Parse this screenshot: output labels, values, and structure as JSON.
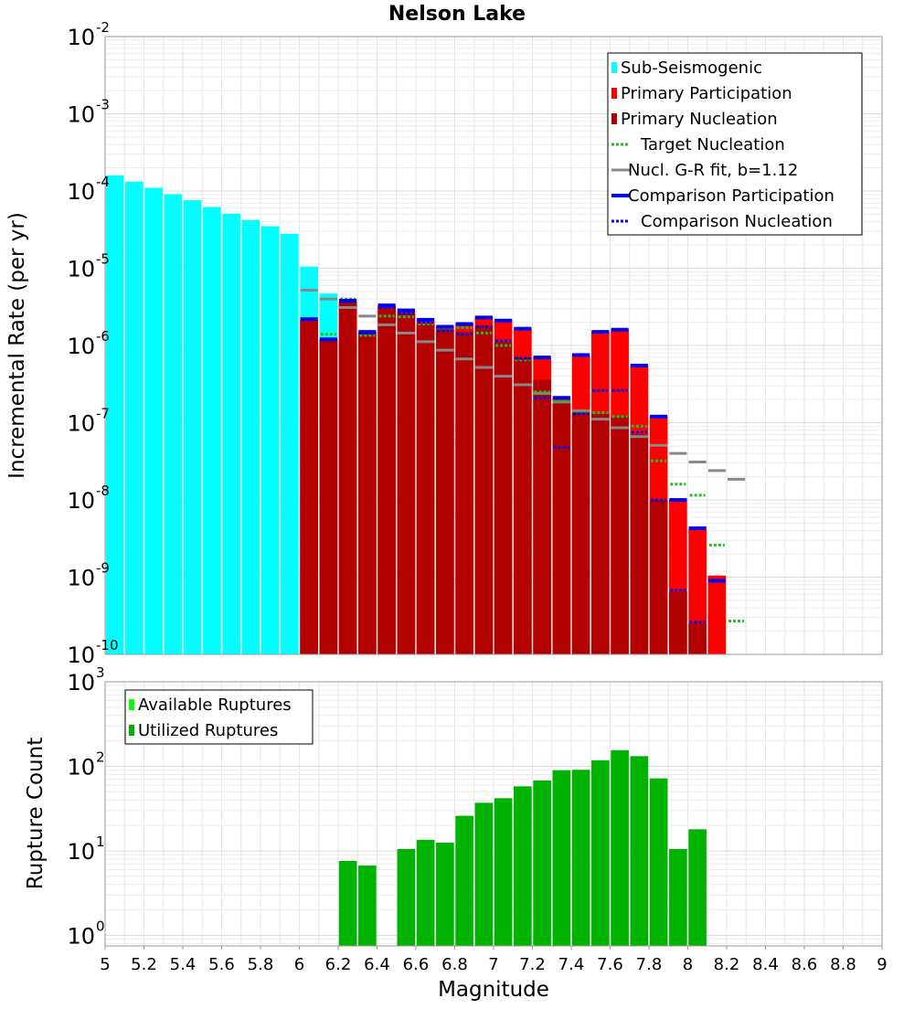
{
  "chart_data": [
    {
      "type": "bar",
      "title": "Nelson Lake",
      "xlabel": "",
      "ylabel": "Incremental Rate (per yr)",
      "yscale": "log",
      "xlim": [
        5,
        9
      ],
      "ylim": [
        1e-10,
        0.01
      ],
      "bin_width": 0.1,
      "legend_position": "top-right",
      "legend": [
        {
          "label": "Sub-Seismogenic",
          "style": "bar",
          "color": "#00ffff"
        },
        {
          "label": "Primary Participation",
          "style": "bar",
          "color": "#ff0000"
        },
        {
          "label": "Primary Nucleation",
          "style": "bar",
          "color": "#b30000"
        },
        {
          "label": "Target Nucleation",
          "style": "dotted",
          "color": "#22bb22"
        },
        {
          "label": "Nucl. G-R fit, b=1.12",
          "style": "line",
          "color": "#888888"
        },
        {
          "label": "Comparison Participation",
          "style": "line",
          "color": "#0000ee"
        },
        {
          "label": "Comparison Nucleation",
          "style": "dotted",
          "color": "#0000ee"
        }
      ],
      "series": [
        {
          "name": "Sub-Seismogenic",
          "color": "#00ffff",
          "x": [
            5.05,
            5.15,
            5.25,
            5.35,
            5.45,
            5.55,
            5.65,
            5.75,
            5.85,
            5.95,
            6.05,
            6.15
          ],
          "values": [
            0.00016,
            0.000132,
            0.00011,
            9.1e-05,
            7.6e-05,
            6.2e-05,
            5.1e-05,
            4.2e-05,
            3.5e-05,
            2.8e-05,
            1.05e-05,
            4.7e-06
          ]
        },
        {
          "name": "Primary Participation",
          "color": "#ff0000",
          "x": [
            6.05,
            6.15,
            6.25,
            6.35,
            6.45,
            6.55,
            6.65,
            6.75,
            6.85,
            6.95,
            7.05,
            7.15,
            7.25,
            7.35,
            7.45,
            7.55,
            7.65,
            7.75,
            7.85,
            7.95,
            8.05,
            8.15
          ],
          "values": [
            2.1e-06,
            1.2e-06,
            3.7e-06,
            1.5e-06,
            3.3e-06,
            2.8e-06,
            2.1e-06,
            1.75e-06,
            1.9e-06,
            2.3e-06,
            2.1e-06,
            1.65e-06,
            7e-07,
            2.1e-07,
            7.5e-07,
            1.5e-06,
            1.6e-06,
            5.5e-07,
            1.2e-07,
            1e-08,
            4.2e-09,
            1.05e-09
          ]
        },
        {
          "name": "Primary Nucleation",
          "color": "#b30000",
          "x": [
            6.05,
            6.15,
            6.25,
            6.35,
            6.45,
            6.55,
            6.65,
            6.75,
            6.85,
            6.95,
            7.05,
            7.15,
            7.25,
            7.35,
            7.45,
            7.55,
            7.65,
            7.75,
            7.85,
            7.95,
            8.05
          ],
          "values": [
            2.1e-06,
            1.2e-06,
            3.6e-06,
            1.5e-06,
            3.2e-06,
            2.6e-06,
            1.9e-06,
            1.6e-06,
            1.5e-06,
            1.8e-06,
            1.1e-06,
            7e-07,
            3.6e-07,
            1.8e-07,
            1.35e-07,
            1.3e-07,
            1.2e-07,
            7e-08,
            1e-08,
            6.5e-10,
            2.5e-10
          ]
        },
        {
          "name": "Target Nucleation",
          "color": "#22bb22",
          "style": "dotted",
          "x": [
            6.05,
            6.15,
            6.25,
            6.35,
            6.45,
            6.55,
            6.65,
            6.75,
            6.85,
            6.95,
            7.05,
            7.15,
            7.25,
            7.35,
            7.45,
            7.55,
            7.65,
            7.75,
            7.85,
            7.95,
            8.05,
            8.15,
            8.25
          ],
          "values": [
            2.2e-06,
            1.4e-06,
            4e-06,
            1.35e-06,
            2.4e-06,
            2.35e-06,
            1.9e-06,
            1.6e-06,
            1.7e-06,
            1.45e-06,
            1e-06,
            6.5e-07,
            2.5e-07,
            1.9e-07,
            1.35e-07,
            1.35e-07,
            1.2e-07,
            9e-08,
            3.2e-08,
            1.6e-08,
            1.15e-08,
            2.6e-09,
            2.7e-10
          ]
        },
        {
          "name": "Nucl. G-R fit, b=1.12",
          "color": "#888888",
          "x": [
            6.05,
            6.15,
            6.25,
            6.35,
            6.45,
            6.55,
            6.65,
            6.75,
            6.85,
            6.95,
            7.05,
            7.15,
            7.25,
            7.35,
            7.45,
            7.55,
            7.65,
            7.75,
            7.85,
            7.95,
            8.05,
            8.15,
            8.25
          ],
          "values": [
            5.2e-06,
            4e-06,
            3.1e-06,
            2.4e-06,
            1.85e-06,
            1.45e-06,
            1.12e-06,
            8.7e-07,
            6.7e-07,
            5.2e-07,
            4e-07,
            3.1e-07,
            2.4e-07,
            1.85e-07,
            1.43e-07,
            1.11e-07,
            8.6e-08,
            6.6e-08,
            5.1e-08,
            4e-08,
            3.1e-08,
            2.4e-08,
            1.85e-08
          ]
        },
        {
          "name": "Comparison Participation",
          "color": "#0000ee",
          "x": [
            6.05,
            6.15,
            6.25,
            6.35,
            6.45,
            6.55,
            6.65,
            6.75,
            6.85,
            6.95,
            7.05,
            7.15,
            7.25,
            7.35,
            7.45,
            7.55,
            7.65,
            7.75,
            7.85,
            7.95,
            8.05,
            8.15
          ],
          "values": [
            2.2e-06,
            1.2e-06,
            3.8e-06,
            1.5e-06,
            3.3e-06,
            2.85e-06,
            2.15e-06,
            1.75e-06,
            1.9e-06,
            2.3e-06,
            2.1e-06,
            1.65e-06,
            7e-07,
            2.1e-07,
            7.5e-07,
            1.5e-06,
            1.6e-06,
            5.5e-07,
            1.2e-07,
            1e-08,
            4.3e-09,
            9e-10
          ]
        },
        {
          "name": "Comparison Nucleation",
          "color": "#0000ee",
          "style": "dotted",
          "x": [
            6.05,
            6.15,
            6.25,
            6.35,
            6.45,
            6.55,
            6.65,
            6.75,
            6.85,
            6.95,
            7.05,
            7.15,
            7.25,
            7.35,
            7.45,
            7.55,
            7.65,
            7.75,
            7.85,
            7.95,
            8.05
          ],
          "values": [
            2.2e-06,
            1.2e-06,
            3.7e-06,
            1.45e-06,
            3.1e-06,
            2.6e-06,
            2e-06,
            1.55e-06,
            1.4e-06,
            1.75e-06,
            1.15e-06,
            6.8e-07,
            2.1e-07,
            4.8e-08,
            1.3e-07,
            2.6e-07,
            2.6e-07,
            7.5e-08,
            1e-08,
            6.8e-10,
            2.6e-10
          ]
        }
      ],
      "x_ticks": [
        "5",
        "5.2",
        "5.4",
        "5.6",
        "5.8",
        "6",
        "6.2",
        "6.4",
        "6.6",
        "6.8",
        "7",
        "7.2",
        "7.4",
        "7.6",
        "7.8",
        "8",
        "8.2",
        "8.4",
        "8.6",
        "8.8",
        "9"
      ],
      "y_ticks": [
        {
          "base": "10",
          "exp": "-2"
        },
        {
          "base": "10",
          "exp": "-3"
        },
        {
          "base": "10",
          "exp": "-4"
        },
        {
          "base": "10",
          "exp": "-5"
        },
        {
          "base": "10",
          "exp": "-6"
        },
        {
          "base": "10",
          "exp": "-7"
        },
        {
          "base": "10",
          "exp": "-8"
        },
        {
          "base": "10",
          "exp": "-9"
        },
        {
          "base": "10",
          "exp": "-10"
        }
      ]
    },
    {
      "type": "bar",
      "title": "",
      "xlabel": "Magnitude",
      "ylabel": "Rupture Count",
      "yscale": "log",
      "xlim": [
        5,
        9
      ],
      "ylim": [
        0.75,
        1000
      ],
      "bin_width": 0.1,
      "legend_position": "top-left",
      "legend": [
        {
          "label": "Available Ruptures",
          "style": "bar",
          "color": "#00ff00"
        },
        {
          "label": "Utilized Ruptures",
          "style": "bar",
          "color": "#00b300"
        }
      ],
      "series": [
        {
          "name": "Utilized Ruptures",
          "color": "#00b300",
          "x": [
            6.25,
            6.35,
            6.55,
            6.65,
            6.75,
            6.85,
            6.95,
            7.05,
            7.15,
            7.25,
            7.35,
            7.45,
            7.55,
            7.65,
            7.75,
            7.85,
            7.95,
            8.05
          ],
          "values": [
            7.6,
            6.7,
            10.5,
            13.5,
            12.5,
            26,
            37,
            42,
            58,
            68,
            90,
            91,
            118,
            155,
            132,
            72,
            10.5,
            18
          ]
        }
      ],
      "x_ticks": [
        "5",
        "5.2",
        "5.4",
        "5.6",
        "5.8",
        "6",
        "6.2",
        "6.4",
        "6.6",
        "6.8",
        "7",
        "7.2",
        "7.4",
        "7.6",
        "7.8",
        "8",
        "8.2",
        "8.4",
        "8.6",
        "8.8",
        "9"
      ],
      "y_ticks": [
        {
          "base": "10",
          "exp": "3"
        },
        {
          "base": "10",
          "exp": "2"
        },
        {
          "base": "10",
          "exp": "1"
        },
        {
          "base": "10",
          "exp": "0"
        }
      ]
    }
  ]
}
